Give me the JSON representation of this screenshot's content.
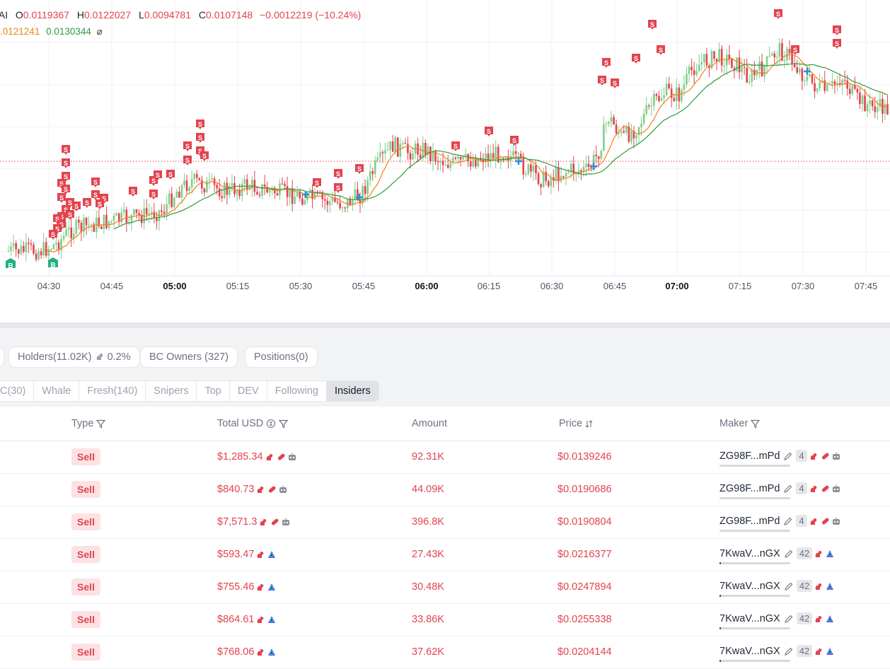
{
  "legend": {
    "symbol": "I.AI",
    "o_label": "O",
    "o_val": "0.0119367",
    "h_label": "H",
    "h_val": "0.0122027",
    "l_label": "L",
    "l_val": "0.0094781",
    "c_label": "C",
    "c_val": "0.0107148",
    "change": "−0.0012219 (−10.24%)",
    "ma_fast": ".0121241",
    "ma_slow": "0.0130344",
    "hide_glyph": "⌀"
  },
  "time_axis": [
    {
      "label": "04:30",
      "bold": false
    },
    {
      "label": "04:45",
      "bold": false
    },
    {
      "label": "05:00",
      "bold": true
    },
    {
      "label": "05:15",
      "bold": false
    },
    {
      "label": "05:30",
      "bold": false
    },
    {
      "label": "05:45",
      "bold": false
    },
    {
      "label": "06:00",
      "bold": true
    },
    {
      "label": "06:15",
      "bold": false
    },
    {
      "label": "06:30",
      "bold": false
    },
    {
      "label": "06:45",
      "bold": false
    },
    {
      "label": "07:00",
      "bold": true
    },
    {
      "label": "07:15",
      "bold": false
    },
    {
      "label": "07:30",
      "bold": false
    },
    {
      "label": "07:45",
      "bold": false
    }
  ],
  "markers": {
    "sell_letter": "S",
    "buy_letter": "B"
  },
  "colors": {
    "up": "#7ecf8a",
    "down": "#e2434e",
    "ma_fast": "#f0801a",
    "ma_slow": "#2e9a3c",
    "sell_badge": "#e2434e",
    "buy_badge": "#22b07d",
    "cross": "#2b8fe0"
  },
  "panel": {
    "holders": "Holders(11.02K)",
    "holders_pct": "0.2%",
    "bc_owners": "BC Owners (327)",
    "positions": "Positions(0)"
  },
  "filter_tabs": [
    {
      "label": "C(30)",
      "active": false
    },
    {
      "label": "Whale",
      "active": false
    },
    {
      "label": "Fresh(140)",
      "active": false
    },
    {
      "label": "Snipers",
      "active": false
    },
    {
      "label": "Top",
      "active": false
    },
    {
      "label": "DEV",
      "active": false
    },
    {
      "label": "Following",
      "active": false
    },
    {
      "label": "Insiders",
      "active": true
    }
  ],
  "table": {
    "headers": {
      "type": "Type",
      "total_usd": "Total USD",
      "amount": "Amount",
      "price": "Price",
      "maker": "Maker"
    },
    "rows": [
      {
        "type": "Sell",
        "usd": "$1,285.34",
        "amount": "92.31K",
        "price": "$0.0139246",
        "maker": "ZG98F...mPd",
        "count": "4",
        "icons": "ghost",
        "bar": 0.0
      },
      {
        "type": "Sell",
        "usd": "$840.73",
        "amount": "44.09K",
        "price": "$0.0190686",
        "maker": "ZG98F...mPd",
        "count": "4",
        "icons": "ghost",
        "bar": 0.0
      },
      {
        "type": "Sell",
        "usd": "$7,571.3",
        "amount": "396.8K",
        "price": "$0.0190804",
        "maker": "ZG98F...mPd",
        "count": "4",
        "icons": "ghost",
        "bar": 0.0
      },
      {
        "type": "Sell",
        "usd": "$593.47",
        "amount": "27.43K",
        "price": "$0.0216377",
        "maker": "7KwaV...nGX",
        "count": "42",
        "icons": "eye",
        "bar": 0.02
      },
      {
        "type": "Sell",
        "usd": "$755.46",
        "amount": "30.48K",
        "price": "$0.0247894",
        "maker": "7KwaV...nGX",
        "count": "42",
        "icons": "eye",
        "bar": 0.02
      },
      {
        "type": "Sell",
        "usd": "$864.61",
        "amount": "33.86K",
        "price": "$0.0255338",
        "maker": "7KwaV...nGX",
        "count": "42",
        "icons": "eye",
        "bar": 0.02
      },
      {
        "type": "Sell",
        "usd": "$768.06",
        "amount": "37.62K",
        "price": "$0.0204144",
        "maker": "7KwaV...nGX",
        "count": "42",
        "icons": "eye",
        "bar": 0.02
      }
    ]
  }
}
